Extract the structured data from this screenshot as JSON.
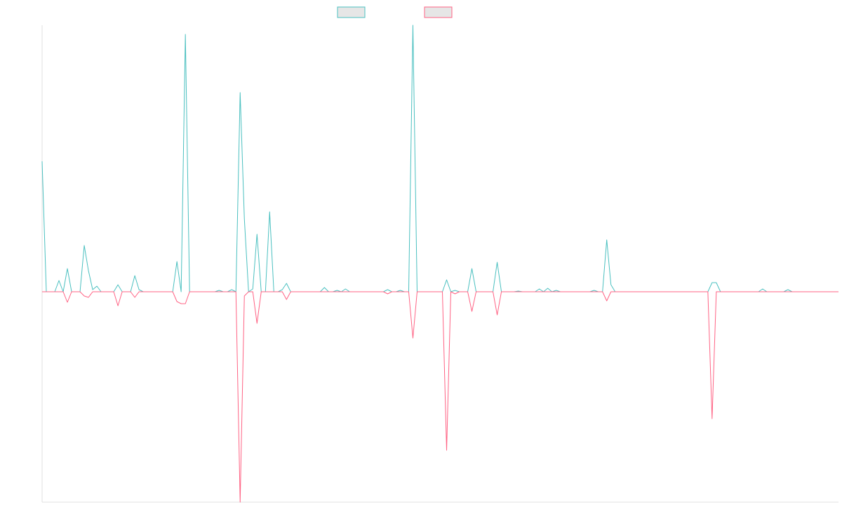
{
  "chart_data": {
    "type": "line",
    "categories": [
      null,
      null,
      null,
      null,
      null,
      null,
      null,
      null,
      null,
      null,
      null,
      null,
      null,
      null,
      null,
      null,
      null,
      null,
      null,
      null,
      null,
      null,
      null,
      null,
      null,
      null,
      null,
      null,
      null,
      null,
      null,
      null,
      null,
      null,
      null,
      null,
      null,
      null,
      null,
      null,
      null,
      null,
      null,
      null,
      null,
      null,
      null,
      null,
      null,
      null,
      null,
      null,
      null,
      null,
      null,
      null,
      null,
      null,
      null,
      null,
      null,
      null,
      null,
      null,
      null,
      null,
      null,
      null,
      null,
      null,
      null,
      null,
      null,
      null,
      null,
      null,
      null,
      null,
      null,
      null,
      null,
      null,
      null,
      null,
      null,
      null,
      null,
      null,
      null,
      null,
      null,
      null,
      null,
      null,
      null,
      null,
      null,
      null,
      null,
      null,
      null,
      null,
      null,
      null,
      null,
      null,
      null,
      null,
      null,
      null,
      null,
      null,
      null,
      null,
      null,
      null,
      null,
      null,
      null,
      null,
      null,
      null,
      null,
      null,
      null,
      null,
      null,
      null,
      null,
      null,
      null,
      null,
      null,
      null,
      null,
      null,
      null,
      null,
      null,
      null,
      null,
      null,
      null,
      null,
      null,
      null,
      null,
      null,
      null,
      null,
      null,
      null,
      null,
      null,
      null,
      null,
      null,
      null,
      null,
      null,
      null,
      null,
      null,
      null,
      null,
      null,
      null,
      null,
      null,
      null,
      null,
      null,
      null,
      null,
      null,
      null,
      null,
      null,
      null,
      null,
      null,
      null,
      null,
      null,
      null,
      null,
      null,
      null,
      null,
      null
    ],
    "series": [
      {
        "color": "#4bc0c0",
        "values": [
          186,
          0,
          0,
          0,
          16,
          0,
          33,
          0,
          0,
          0,
          66,
          30,
          3,
          8,
          0,
          0,
          0,
          0,
          10,
          0,
          0,
          0,
          23,
          3,
          0,
          0,
          0,
          0,
          0,
          0,
          0,
          0,
          43,
          0,
          367,
          0,
          0,
          0,
          0,
          0,
          0,
          0,
          2,
          0,
          0,
          3,
          0,
          284,
          104,
          0,
          4,
          82,
          0,
          0,
          114,
          0,
          0,
          3,
          12,
          0,
          0,
          0,
          0,
          0,
          0,
          0,
          0,
          6,
          0,
          0,
          2,
          0,
          4,
          0,
          0,
          0,
          0,
          0,
          0,
          0,
          0,
          0,
          3,
          0,
          0,
          2,
          0,
          0,
          380,
          0,
          0,
          0,
          0,
          0,
          0,
          0,
          17,
          0,
          2,
          0,
          0,
          0,
          33,
          0,
          0,
          0,
          0,
          0,
          42,
          0,
          0,
          0,
          0,
          1,
          0,
          0,
          0,
          0,
          4,
          0,
          5,
          0,
          2,
          0,
          0,
          0,
          0,
          0,
          0,
          0,
          0,
          2,
          0,
          0,
          74,
          10,
          0,
          0,
          0,
          0,
          0,
          0,
          0,
          0,
          0,
          0,
          0,
          0,
          0,
          0,
          0,
          0,
          0,
          0,
          0,
          0,
          0,
          0,
          0,
          13,
          13,
          0,
          0,
          0,
          0,
          0,
          0,
          0,
          0,
          0,
          0,
          4,
          0,
          0,
          0,
          0,
          0,
          3,
          0,
          0,
          0,
          0,
          0,
          0,
          0,
          0,
          0,
          0,
          0,
          0
        ]
      },
      {
        "color": "#ff6384",
        "values": [
          0,
          0,
          0,
          0,
          0,
          0,
          -15,
          0,
          0,
          0,
          -6,
          -8,
          0,
          0,
          0,
          0,
          0,
          0,
          -20,
          0,
          0,
          0,
          -8,
          0,
          0,
          0,
          0,
          0,
          0,
          0,
          0,
          0,
          -14,
          -17,
          -17,
          0,
          0,
          0,
          0,
          0,
          0,
          0,
          0,
          0,
          0,
          0,
          0,
          -300,
          -6,
          0,
          0,
          -45,
          0,
          0,
          0,
          0,
          0,
          0,
          -11,
          0,
          0,
          0,
          0,
          0,
          0,
          0,
          0,
          0,
          0,
          0,
          0,
          0,
          0,
          0,
          0,
          0,
          0,
          0,
          0,
          0,
          0,
          0,
          -3,
          0,
          0,
          0,
          0,
          0,
          -66,
          0,
          0,
          0,
          0,
          0,
          0,
          0,
          -226,
          0,
          -3,
          0,
          0,
          0,
          -28,
          0,
          0,
          0,
          0,
          0,
          -33,
          0,
          0,
          0,
          0,
          0,
          0,
          0,
          0,
          0,
          0,
          0,
          0,
          0,
          0,
          0,
          0,
          0,
          0,
          0,
          0,
          0,
          0,
          0,
          0,
          0,
          -13,
          0,
          0,
          0,
          0,
          0,
          0,
          0,
          0,
          0,
          0,
          0,
          0,
          0,
          0,
          0,
          0,
          0,
          0,
          0,
          0,
          0,
          0,
          0,
          0,
          -181,
          0,
          0,
          0,
          0,
          0,
          0,
          0,
          0,
          0,
          0,
          0,
          0,
          0,
          0,
          0,
          0,
          0,
          0,
          0,
          0,
          0,
          0,
          0,
          0,
          0,
          0,
          0,
          0,
          0,
          0
        ]
      }
    ],
    "ylim": [
      -300,
      380
    ]
  }
}
